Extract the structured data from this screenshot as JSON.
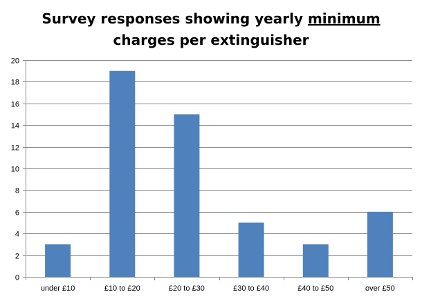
{
  "chart_data": {
    "type": "bar",
    "title": {
      "line1": "Survey responses showing yearly",
      "emphasis": "minimum",
      "line2": "charges per extinguisher"
    },
    "categories": [
      "under £10",
      "£10 to £20",
      "£20 to £30",
      "£30 to £40",
      "£40 to £50",
      "over £50"
    ],
    "values": [
      3,
      19,
      15,
      5,
      3,
      6
    ],
    "y_ticks": [
      "0",
      "2",
      "4",
      "6",
      "8",
      "10",
      "12",
      "14",
      "16",
      "18",
      "20"
    ],
    "ylim": [
      0,
      20
    ],
    "xlabel": "",
    "ylabel": "",
    "grid": true,
    "legend": "none",
    "colors": {
      "bar": "#4f81bd",
      "grid": "#868686",
      "axis": "#868686"
    }
  }
}
